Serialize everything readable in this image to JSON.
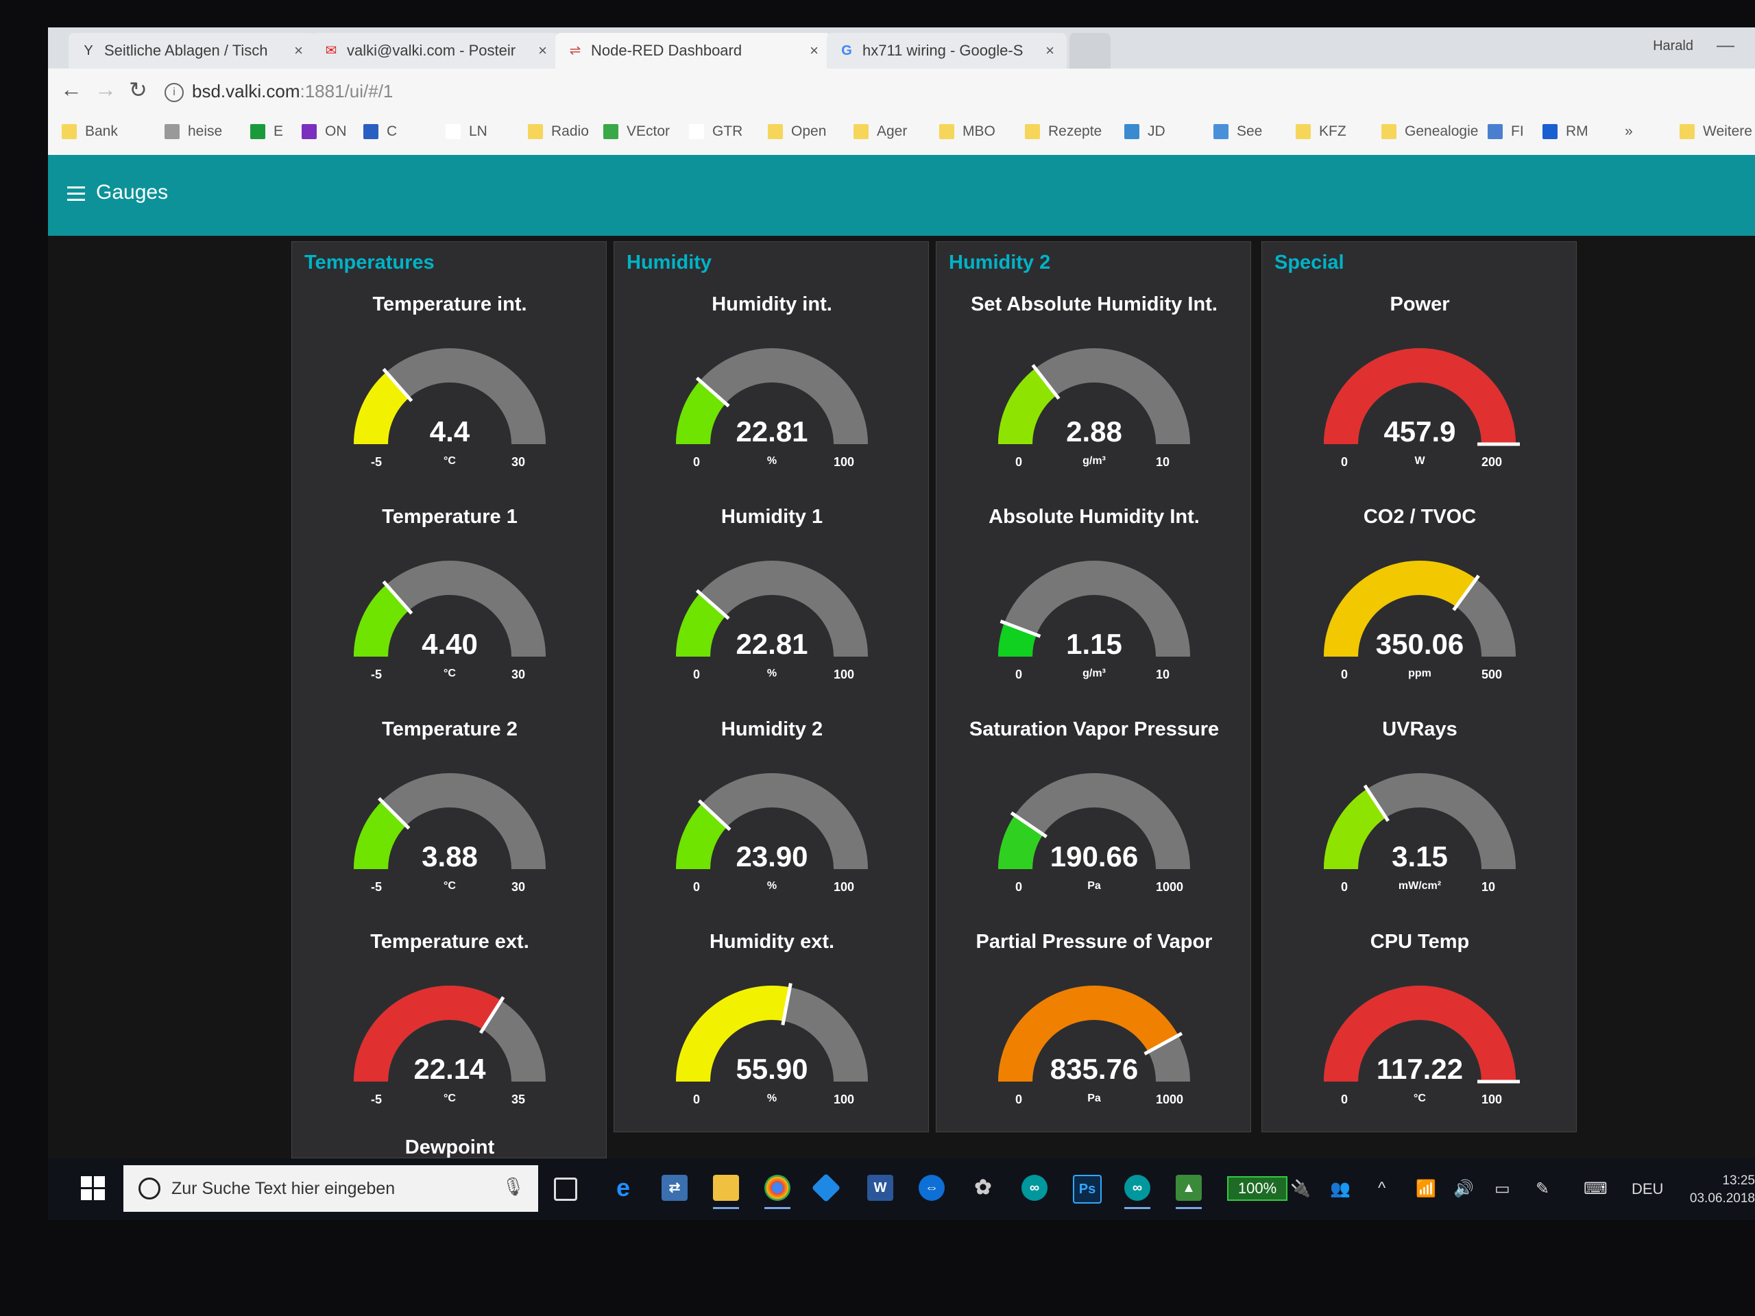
{
  "browser": {
    "tabs": [
      {
        "label": "Seitliche Ablagen / Tisch",
        "icon": "y-site-icon",
        "color": "#888888"
      },
      {
        "label": "valki@valki.com - Posteir",
        "icon": "mail-icon",
        "color": "#e02020"
      },
      {
        "label": "Node-RED Dashboard",
        "icon": "node-red-icon",
        "color": "#c44"
      },
      {
        "label": "hx711 wiring - Google-S",
        "icon": "google-icon",
        "color": "#4285f4"
      }
    ],
    "profile_name": "Harald",
    "url_host": "bsd.valki.com",
    "url_path": ":1881/ui/#/1",
    "bookmarks": [
      {
        "label": "Bank",
        "color": "#f6d65a"
      },
      {
        "label": "heise",
        "color": "#999999"
      },
      {
        "label": "E",
        "color": "#1a9a3a"
      },
      {
        "label": "ON",
        "color": "#7b2fbe"
      },
      {
        "label": "C",
        "color": "#2a5fc1"
      },
      {
        "label": "LN",
        "color": "#ffffff"
      },
      {
        "label": "Radio",
        "color": "#f6d65a"
      },
      {
        "label": "VEctor",
        "color": "#3aa846"
      },
      {
        "label": "GTR",
        "color": "#ffffff"
      },
      {
        "label": "Open",
        "color": "#f6d65a"
      },
      {
        "label": "Ager",
        "color": "#f6d65a"
      },
      {
        "label": "MBO",
        "color": "#f6d65a"
      },
      {
        "label": "Rezepte",
        "color": "#f6d65a"
      },
      {
        "label": "JD",
        "color": "#3a8ad0"
      },
      {
        "label": "See",
        "color": "#4a90d9"
      },
      {
        "label": "KFZ",
        "color": "#f6d65a"
      },
      {
        "label": "Genealogie",
        "color": "#f6d65a"
      },
      {
        "label": "FI",
        "color": "#4a7fd0"
      },
      {
        "label": "RM",
        "color": "#1a5fd0"
      },
      {
        "label": "»",
        "color": ""
      },
      {
        "label": "Weitere",
        "color": "#f6d65a"
      }
    ]
  },
  "dashboard": {
    "title": "Gauges",
    "header_color": "#0d9299",
    "groups": [
      {
        "title": "Temperatures",
        "gauges": [
          {
            "title": "Temperature int.",
            "value": "4.4",
            "unit": "°C",
            "min": "-5",
            "max": "30",
            "fraction": 0.27,
            "color": "#f2f200"
          },
          {
            "title": "Temperature 1",
            "value": "4.40",
            "unit": "°C",
            "min": "-5",
            "max": "30",
            "fraction": 0.27,
            "color": "#6ee400"
          },
          {
            "title": "Temperature 2",
            "value": "3.88",
            "unit": "°C",
            "min": "-5",
            "max": "30",
            "fraction": 0.25,
            "color": "#6ee400"
          },
          {
            "title": "Temperature ext.",
            "value": "22.14",
            "unit": "°C",
            "min": "-5",
            "max": "35",
            "fraction": 0.68,
            "color": "#e03030"
          }
        ],
        "footer_title": "Dewpoint"
      },
      {
        "title": "Humidity",
        "gauges": [
          {
            "title": "Humidity int.",
            "value": "22.81",
            "unit": "%",
            "min": "0",
            "max": "100",
            "fraction": 0.23,
            "color": "#6ee400"
          },
          {
            "title": "Humidity 1",
            "value": "22.81",
            "unit": "%",
            "min": "0",
            "max": "100",
            "fraction": 0.23,
            "color": "#6ee400"
          },
          {
            "title": "Humidity 2",
            "value": "23.90",
            "unit": "%",
            "min": "0",
            "max": "100",
            "fraction": 0.24,
            "color": "#6ee400"
          },
          {
            "title": "Humidity ext.",
            "value": "55.90",
            "unit": "%",
            "min": "0",
            "max": "100",
            "fraction": 0.56,
            "color": "#f2f200"
          }
        ]
      },
      {
        "title": "Humidity 2",
        "gauges": [
          {
            "title": "Set Absolute Humidity Int.",
            "value": "2.88",
            "unit": "g/m³",
            "min": "0",
            "max": "10",
            "fraction": 0.29,
            "color": "#8ee400"
          },
          {
            "title": "Absolute Humidity Int.",
            "value": "1.15",
            "unit": "g/m³",
            "min": "0",
            "max": "10",
            "fraction": 0.115,
            "color": "#10d020"
          },
          {
            "title": "Saturation Vapor Pressure",
            "value": "190.66",
            "unit": "Pa",
            "min": "0",
            "max": "1000",
            "fraction": 0.19,
            "color": "#30d020"
          },
          {
            "title": "Partial Pressure of Vapor",
            "value": "835.76",
            "unit": "Pa",
            "min": "0",
            "max": "1000",
            "fraction": 0.84,
            "color": "#f08000"
          }
        ]
      },
      {
        "title": "Special",
        "gauges": [
          {
            "title": "Power",
            "value": "457.9",
            "unit": "W",
            "min": "0",
            "max": "200",
            "fraction": 1.0,
            "color": "#e03030"
          },
          {
            "title": "CO2 / TVOC",
            "value": "350.06",
            "unit": "ppm",
            "min": "0",
            "max": "500",
            "fraction": 0.7,
            "color": "#f2c800"
          },
          {
            "title": "UVRays",
            "value": "3.15",
            "unit": "mW/cm²",
            "min": "0",
            "max": "10",
            "fraction": 0.315,
            "color": "#8ee400"
          },
          {
            "title": "CPU Temp",
            "value": "117.22",
            "unit": "°C",
            "min": "0",
            "max": "100",
            "fraction": 1.0,
            "color": "#e03030"
          }
        ]
      }
    ]
  },
  "taskbar": {
    "search_placeholder": "Zur Suche Text hier eingeben",
    "battery": "100%",
    "language": "DEU",
    "time": "13:25",
    "date": "03.06.2018"
  }
}
